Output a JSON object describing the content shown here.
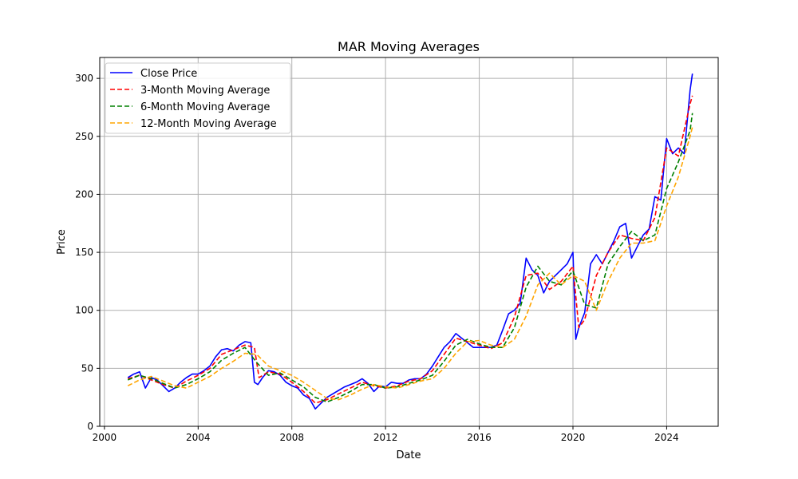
{
  "chart_data": {
    "type": "line",
    "title": "MAR Moving Averages",
    "xlabel": "Date",
    "ylabel": "Price",
    "xlim": [
      1999.8,
      2026.2
    ],
    "ylim": [
      0,
      318
    ],
    "x_ticks": [
      2000,
      2004,
      2008,
      2012,
      2016,
      2020,
      2024
    ],
    "y_ticks": [
      0,
      50,
      100,
      150,
      200,
      250,
      300
    ],
    "grid": true,
    "legend_position": "upper-left",
    "colors": {
      "close": "#0000ff",
      "ma3": "#ff0000",
      "ma6": "#008000",
      "ma12": "#ffa500",
      "grid": "#b0b0b0"
    },
    "series": [
      {
        "name": "Close Price",
        "style": "solid",
        "x": [
          2001.0,
          2001.25,
          2001.5,
          2001.75,
          2002.0,
          2002.25,
          2002.5,
          2002.75,
          2003.0,
          2003.25,
          2003.5,
          2003.75,
          2004.0,
          2004.25,
          2004.5,
          2004.75,
          2005.0,
          2005.25,
          2005.5,
          2005.75,
          2006.0,
          2006.25,
          2006.4,
          2006.55,
          2006.75,
          2007.0,
          2007.25,
          2007.5,
          2007.75,
          2008.0,
          2008.25,
          2008.5,
          2008.75,
          2009.0,
          2009.25,
          2009.5,
          2009.75,
          2010.0,
          2010.25,
          2010.5,
          2010.75,
          2011.0,
          2011.25,
          2011.5,
          2011.75,
          2012.0,
          2012.25,
          2012.5,
          2012.75,
          2013.0,
          2013.25,
          2013.5,
          2013.75,
          2014.0,
          2014.25,
          2014.5,
          2014.75,
          2015.0,
          2015.25,
          2015.5,
          2015.75,
          2016.0,
          2016.25,
          2016.5,
          2016.75,
          2017.0,
          2017.25,
          2017.5,
          2017.75,
          2018.0,
          2018.25,
          2018.5,
          2018.75,
          2019.0,
          2019.25,
          2019.5,
          2019.75,
          2020.0,
          2020.12,
          2020.25,
          2020.5,
          2020.75,
          2021.0,
          2021.25,
          2021.5,
          2021.75,
          2022.0,
          2022.25,
          2022.5,
          2022.75,
          2023.0,
          2023.25,
          2023.5,
          2023.75,
          2024.0,
          2024.25,
          2024.5,
          2024.75,
          2025.0,
          2025.1
        ],
        "values": [
          42,
          45,
          47,
          33,
          42,
          40,
          35,
          30,
          33,
          38,
          42,
          45,
          45,
          48,
          52,
          60,
          66,
          67,
          65,
          70,
          73,
          72,
          38,
          36,
          42,
          48,
          47,
          44,
          38,
          35,
          33,
          27,
          24,
          15,
          20,
          25,
          28,
          31,
          34,
          36,
          38,
          41,
          37,
          30,
          35,
          34,
          38,
          37,
          37,
          40,
          41,
          41,
          45,
          52,
          60,
          68,
          73,
          80,
          76,
          72,
          68,
          68,
          68,
          68,
          70,
          83,
          97,
          100,
          106,
          145,
          135,
          130,
          115,
          125,
          130,
          135,
          140,
          150,
          75,
          85,
          98,
          140,
          148,
          140,
          150,
          160,
          172,
          175,
          145,
          155,
          165,
          170,
          198,
          195,
          248,
          235,
          240,
          235,
          290,
          304
        ]
      },
      {
        "name": "3-Month Moving Average",
        "style": "dashed",
        "x": [
          2001.0,
          2001.5,
          2002.0,
          2002.5,
          2003.0,
          2003.5,
          2004.0,
          2004.5,
          2005.0,
          2005.5,
          2006.0,
          2006.4,
          2006.6,
          2007.0,
          2007.5,
          2008.0,
          2008.5,
          2009.0,
          2009.5,
          2010.0,
          2010.5,
          2011.0,
          2011.5,
          2012.0,
          2012.5,
          2013.0,
          2013.5,
          2014.0,
          2014.5,
          2015.0,
          2015.5,
          2016.0,
          2016.5,
          2017.0,
          2017.5,
          2018.0,
          2018.5,
          2019.0,
          2019.5,
          2020.0,
          2020.25,
          2020.5,
          2021.0,
          2021.5,
          2022.0,
          2022.5,
          2023.0,
          2023.5,
          2024.0,
          2024.5,
          2025.0,
          2025.1
        ],
        "values": [
          41,
          44,
          40,
          36,
          33,
          39,
          44,
          50,
          62,
          66,
          70,
          68,
          42,
          47,
          45,
          38,
          30,
          20,
          23,
          28,
          33,
          38,
          35,
          33,
          35,
          39,
          41,
          48,
          62,
          76,
          73,
          70,
          67,
          72,
          94,
          130,
          132,
          118,
          125,
          138,
          85,
          92,
          130,
          150,
          165,
          162,
          160,
          180,
          240,
          233,
          278,
          285
        ]
      },
      {
        "name": "6-Month Moving Average",
        "style": "dashed",
        "x": [
          2001.0,
          2001.5,
          2002.0,
          2002.5,
          2003.0,
          2003.5,
          2004.0,
          2004.5,
          2005.0,
          2005.5,
          2006.0,
          2006.5,
          2007.0,
          2007.5,
          2008.0,
          2008.5,
          2009.0,
          2009.5,
          2010.0,
          2010.5,
          2011.0,
          2011.5,
          2012.0,
          2012.5,
          2013.0,
          2013.5,
          2014.0,
          2014.5,
          2015.0,
          2015.5,
          2016.0,
          2016.5,
          2017.0,
          2017.5,
          2018.0,
          2018.5,
          2019.0,
          2019.5,
          2020.0,
          2020.5,
          2021.0,
          2021.5,
          2022.0,
          2022.5,
          2023.0,
          2023.5,
          2024.0,
          2024.5,
          2025.0,
          2025.1
        ],
        "values": [
          40,
          44,
          41,
          37,
          33,
          36,
          41,
          47,
          57,
          63,
          68,
          55,
          44,
          46,
          40,
          34,
          25,
          21,
          25,
          30,
          36,
          36,
          33,
          34,
          37,
          40,
          44,
          56,
          70,
          75,
          71,
          68,
          68,
          85,
          120,
          138,
          125,
          122,
          134,
          105,
          102,
          140,
          155,
          168,
          160,
          165,
          205,
          228,
          255,
          270
        ]
      },
      {
        "name": "12-Month Moving Average",
        "style": "dashed",
        "x": [
          2001.0,
          2001.5,
          2002.0,
          2002.5,
          2003.0,
          2003.5,
          2004.0,
          2004.5,
          2005.0,
          2005.5,
          2006.0,
          2006.5,
          2007.0,
          2007.5,
          2008.0,
          2008.5,
          2009.0,
          2009.5,
          2010.0,
          2010.5,
          2011.0,
          2011.5,
          2012.0,
          2012.5,
          2013.0,
          2013.5,
          2014.0,
          2014.5,
          2015.0,
          2015.5,
          2016.0,
          2016.5,
          2017.0,
          2017.5,
          2018.0,
          2018.5,
          2019.0,
          2019.5,
          2020.0,
          2020.5,
          2021.0,
          2021.5,
          2022.0,
          2022.5,
          2023.0,
          2023.5,
          2024.0,
          2024.5,
          2025.0,
          2025.1
        ],
        "values": [
          35,
          40,
          43,
          39,
          35,
          33,
          38,
          43,
          50,
          56,
          63,
          62,
          52,
          48,
          44,
          38,
          31,
          24,
          23,
          27,
          32,
          36,
          34,
          33,
          36,
          39,
          41,
          50,
          63,
          73,
          74,
          70,
          68,
          75,
          95,
          122,
          132,
          122,
          130,
          125,
          100,
          125,
          145,
          158,
          158,
          160,
          190,
          215,
          250,
          258
        ]
      }
    ]
  }
}
